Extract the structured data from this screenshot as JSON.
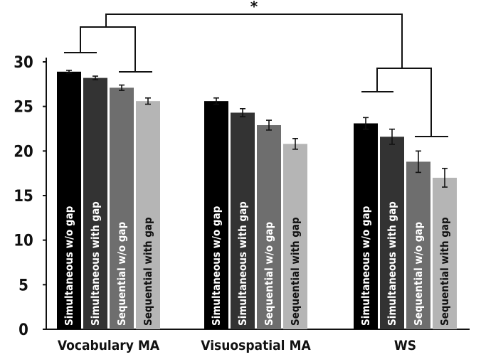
{
  "chart_data": {
    "type": "bar",
    "categories": [
      "Vocabulary MA",
      "Visuospatial MA",
      "WS"
    ],
    "series": [
      {
        "name": "Simultaneous w/o gap",
        "color": "#000000",
        "text_color": "#ffffff",
        "values": [
          28.9,
          25.6,
          23.1
        ],
        "errors": [
          0.15,
          0.35,
          0.65
        ]
      },
      {
        "name": "Simultaneous with gap",
        "color": "#333333",
        "text_color": "#ffffff",
        "values": [
          28.2,
          24.3,
          21.6
        ],
        "errors": [
          0.2,
          0.45,
          0.85
        ]
      },
      {
        "name": "Sequential w/o gap",
        "color": "#6e6e6e",
        "text_color": "#ffffff",
        "values": [
          27.1,
          22.9,
          18.8
        ],
        "errors": [
          0.3,
          0.55,
          1.2
        ]
      },
      {
        "name": "Sequential with gap",
        "color": "#b5b5b5",
        "text_color": "#111111",
        "values": [
          25.6,
          20.8,
          17.0
        ],
        "errors": [
          0.35,
          0.6,
          1.05
        ]
      }
    ],
    "ylim": [
      0,
      30
    ],
    "yticks": [
      0,
      5,
      10,
      15,
      20,
      25,
      30
    ],
    "xlabel": "",
    "ylabel": "",
    "grid": false,
    "legend": "none (series names printed inside bars)",
    "annotations": {
      "significance": "*"
    }
  }
}
